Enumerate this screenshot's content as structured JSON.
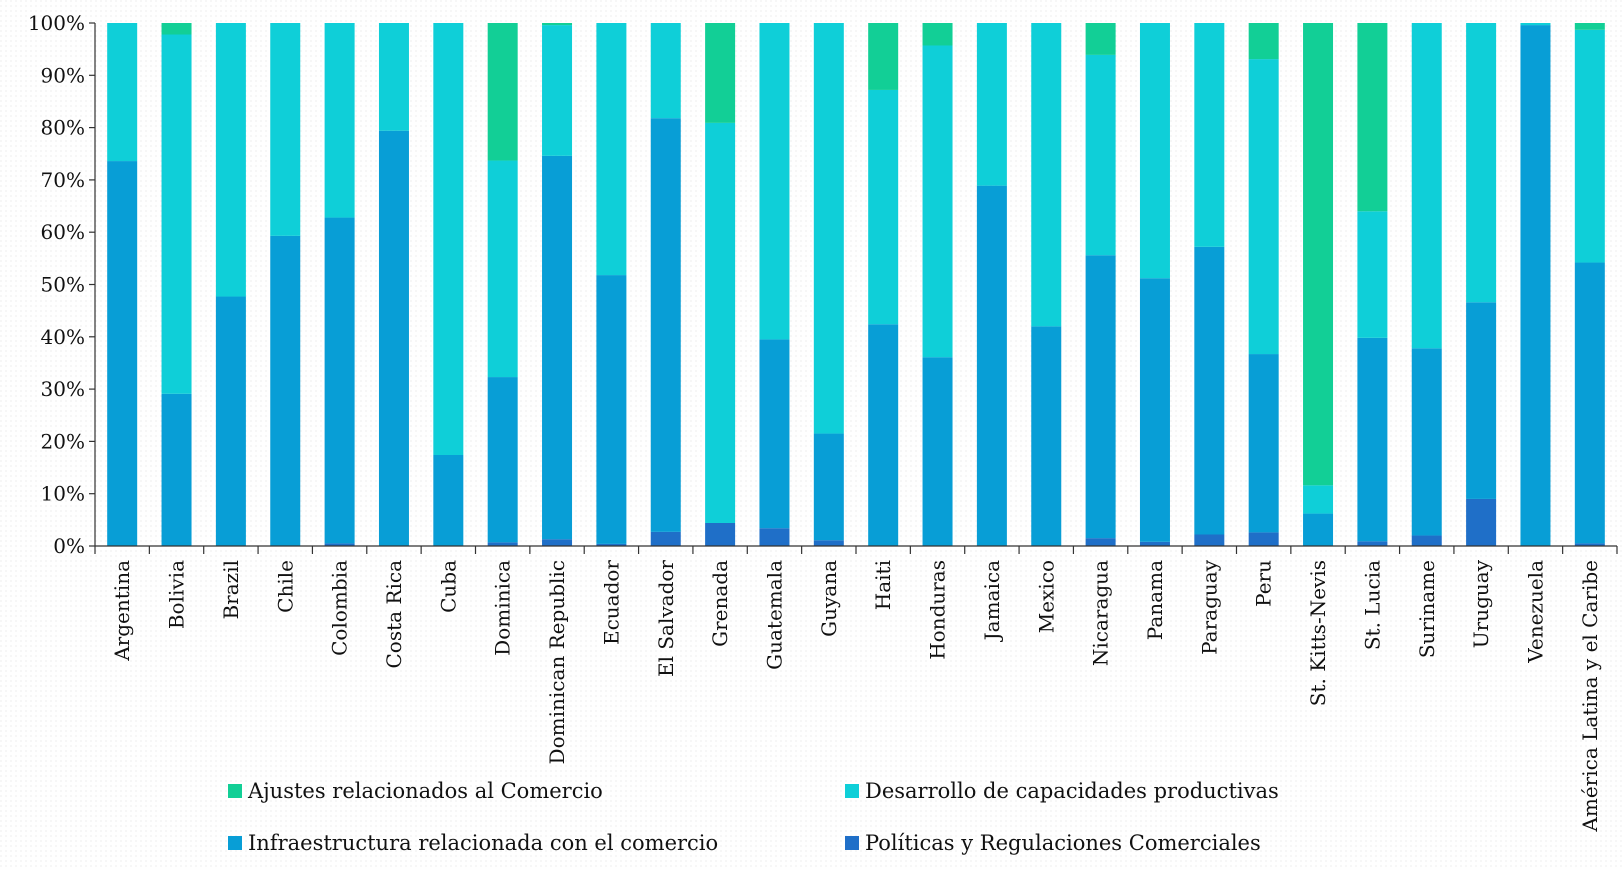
{
  "chart_data": {
    "type": "bar",
    "stacked": true,
    "percent": true,
    "categories": [
      "Argentina",
      "Bolivia",
      "Brazil",
      "Chile",
      "Colombia",
      "Costa Rica",
      "Cuba",
      "Dominica",
      "Dominican Republic",
      "Ecuador",
      "El Salvador",
      "Grenada",
      "Guatemala",
      "Guyana",
      "Haiti",
      "Honduras",
      "Jamaica",
      "Mexico",
      "Nicaragua",
      "Panama",
      "Paraguay",
      "Peru",
      "St. Kitts-Nevis",
      "St. Lucia",
      "Suriname",
      "Uruguay",
      "Venezuela",
      "América Latina y el Caribe"
    ],
    "series": [
      {
        "name": "Políticas y Regulaciones Comerciales",
        "color": "#1f6fc8",
        "values": [
          0,
          0,
          0,
          0,
          0.5,
          0,
          0,
          0.7,
          1.3,
          0.4,
          2.7,
          4.4,
          3.4,
          1.1,
          0,
          0,
          0,
          0,
          1.5,
          0.8,
          2.2,
          2.6,
          0,
          0.9,
          2.0,
          9.0,
          0,
          0.5
        ]
      },
      {
        "name": "Infraestructura relacionada con el comercio",
        "color": "#089ed6",
        "values": [
          73.6,
          29.1,
          47.7,
          59.3,
          62.3,
          79.4,
          17.4,
          31.6,
          73.3,
          51.4,
          79.1,
          0,
          36.1,
          20.4,
          42.4,
          36.1,
          68.9,
          42.0,
          54.1,
          50.4,
          55.0,
          34.1,
          6.2,
          38.9,
          35.8,
          37.6,
          99.6,
          53.7
        ]
      },
      {
        "name": "Desarrollo de capacidades productivas",
        "color": "#0fcfd8",
        "values": [
          26.4,
          68.7,
          52.3,
          40.7,
          37.2,
          20.6,
          82.6,
          41.4,
          25.0,
          48.2,
          18.2,
          76.5,
          60.5,
          78.5,
          44.8,
          59.6,
          31.1,
          58.0,
          38.3,
          48.8,
          42.8,
          56.4,
          5.4,
          24.2,
          62.2,
          53.4,
          0.4,
          44.5
        ]
      },
      {
        "name": "Ajustes relacionados al Comercio",
        "color": "#12cf96",
        "values": [
          0,
          2.2,
          0,
          0,
          0,
          0,
          0,
          26.3,
          0.4,
          0,
          0,
          19.1,
          0,
          0,
          12.8,
          4.3,
          0,
          0,
          6.1,
          0,
          0,
          6.9,
          88.4,
          36.0,
          0,
          0,
          0,
          1.3
        ]
      }
    ],
    "y_ticks": [
      "0%",
      "10%",
      "20%",
      "30%",
      "40%",
      "50%",
      "60%",
      "70%",
      "80%",
      "90%",
      "100%"
    ],
    "ylim": [
      0,
      100
    ],
    "legend_placement": "bottom",
    "legend_order": [
      3,
      2,
      1,
      0
    ]
  }
}
